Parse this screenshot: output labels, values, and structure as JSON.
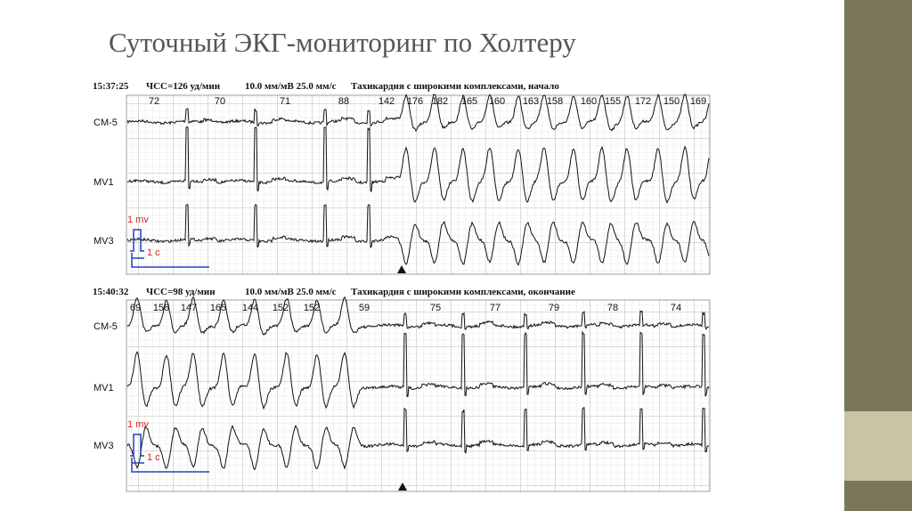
{
  "title": "Суточный ЭКГ-мониторинг по Холтеру",
  "strips": [
    {
      "time": "15:37:25",
      "heart_rate": "ЧСС=126 уд/мин",
      "scale": "10.0 мм/мВ 25.0 мм/с",
      "event": "Тахикардия с широкими комплексами, начало",
      "rates": [
        72,
        70,
        71,
        88,
        142,
        176,
        182,
        165,
        160,
        163,
        158,
        160,
        155,
        172,
        150,
        169
      ],
      "leads": [
        "CM-5",
        "MV1",
        "MV3"
      ],
      "calibration_amplitude": "1 mv",
      "calibration_time": "1 c"
    },
    {
      "time": "15:40:32",
      "heart_rate": "ЧСС=98 уд/мин",
      "scale": "10.0 мм/мВ 25.0 мм/с",
      "event": "Тахикардия с широкими комплексами, окончание",
      "rates": [
        69,
        158,
        147,
        165,
        144,
        152,
        152,
        59,
        75,
        77,
        79,
        78,
        74
      ],
      "leads": [
        "CM-5",
        "MV1",
        "MV3"
      ],
      "calibration_amplitude": "1 mv",
      "calibration_time": "1 c"
    }
  ]
}
